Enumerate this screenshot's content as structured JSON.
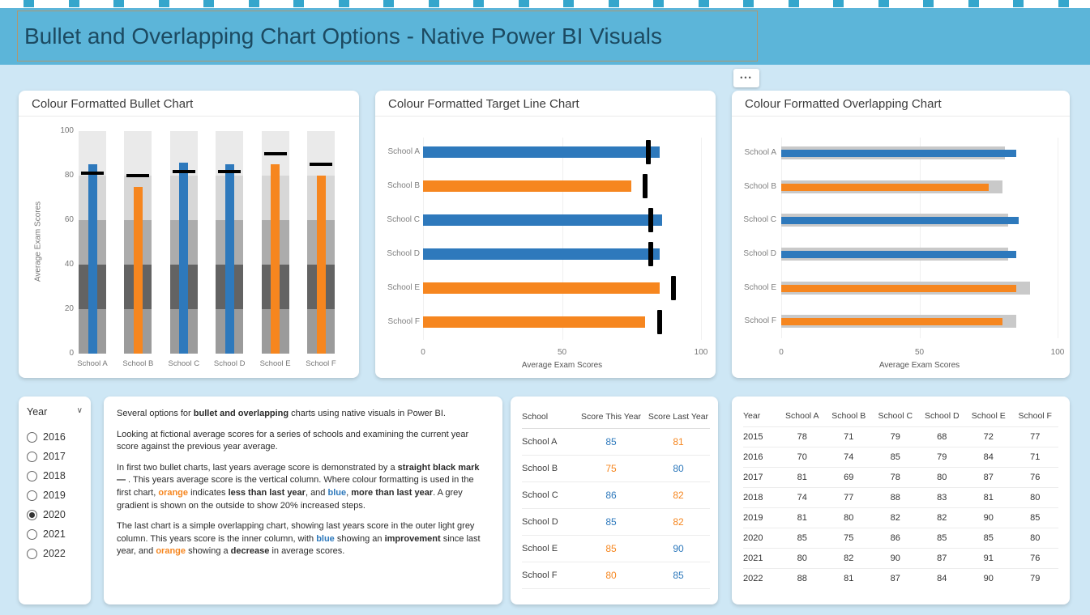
{
  "page": {
    "title": "Bullet and Overlapping Chart Options - Native Power BI Visuals"
  },
  "icons": {
    "more_options": "•••",
    "chevron_down": "∨"
  },
  "decor": {
    "square_count": 24
  },
  "colors": {
    "blue": "#2E79BC",
    "orange": "#F6861F",
    "header_band": "#5CB5D9",
    "decor_square": "#35A6CC",
    "page_background": "#CEE7F5",
    "grey_bar": "#C9C9C9",
    "target_mark": "#000000",
    "axis_text": "#777777",
    "category_text": "#808080"
  },
  "chart_data": [
    {
      "type": "bullet-column",
      "title": "Colour Formatted Bullet Chart",
      "categories": [
        "School A",
        "School B",
        "School C",
        "School D",
        "School E",
        "School F"
      ],
      "series": [
        {
          "name": "Score This Year",
          "values": [
            85,
            75,
            86,
            85,
            85,
            80
          ]
        },
        {
          "name": "Score Last Year (target mark)",
          "values": [
            81,
            80,
            82,
            82,
            90,
            85
          ]
        }
      ],
      "bar_colors": [
        "blue",
        "orange",
        "blue",
        "blue",
        "orange",
        "orange"
      ],
      "ylabel": "Average Exam Scores",
      "ylim": [
        0,
        100
      ],
      "yticks": [
        0,
        20,
        40,
        60,
        80,
        100
      ],
      "band_step": 20,
      "band_colors_bottom_to_top": [
        "#9b9b9b",
        "#636363",
        "#acacac",
        "#d7d7d7",
        "#eaeaea"
      ]
    },
    {
      "type": "bar-horizontal-target",
      "title": "Colour Formatted Target Line Chart",
      "categories": [
        "School A",
        "School B",
        "School C",
        "School D",
        "School E",
        "School F"
      ],
      "series": [
        {
          "name": "Score This Year",
          "values": [
            85,
            75,
            86,
            85,
            85,
            80
          ]
        },
        {
          "name": "Score Last Year (target mark)",
          "values": [
            81,
            80,
            82,
            82,
            90,
            85
          ]
        }
      ],
      "bar_colors": [
        "blue",
        "orange",
        "blue",
        "blue",
        "orange",
        "orange"
      ],
      "xlabel": "Average Exam Scores",
      "xlim": [
        0,
        100
      ],
      "xticks": [
        0,
        50,
        100
      ]
    },
    {
      "type": "bar-horizontal-overlap",
      "title": "Colour Formatted Overlapping Chart",
      "categories": [
        "School A",
        "School B",
        "School C",
        "School D",
        "School E",
        "School F"
      ],
      "series": [
        {
          "name": "Score This Year (inner column)",
          "values": [
            85,
            75,
            86,
            85,
            85,
            80
          ]
        },
        {
          "name": "Score Last Year (outer grey column)",
          "values": [
            81,
            80,
            82,
            82,
            90,
            85
          ]
        }
      ],
      "bar_colors": [
        "blue",
        "orange",
        "blue",
        "blue",
        "orange",
        "orange"
      ],
      "xlabel": "Average Exam Scores",
      "xlim": [
        0,
        100
      ],
      "xticks": [
        0,
        50,
        100
      ]
    }
  ],
  "slicer": {
    "label": "Year",
    "options": [
      "2016",
      "2017",
      "2018",
      "2019",
      "2020",
      "2021",
      "2022"
    ],
    "selected": "2020"
  },
  "description": {
    "paragraphs": [
      [
        {
          "t": "Several options for "
        },
        {
          "t": "bullet and overlapping",
          "b": true
        },
        {
          "t": " charts using native visuals in Power BI."
        }
      ],
      [
        {
          "t": "Looking at fictional average scores for a series of schools and examining the current year score against the previous year average."
        }
      ],
      [
        {
          "t": "In first two bullet charts, last years average score is demonstrated by a "
        },
        {
          "t": "straight black mark —",
          "b": true
        },
        {
          "t": " . This years average score is the vertical column. Where colour formatting is used in the first chart, "
        },
        {
          "t": "orange",
          "b": true,
          "c": "orange"
        },
        {
          "t": " indicates "
        },
        {
          "t": "less than last year",
          "b": true
        },
        {
          "t": ", and "
        },
        {
          "t": "blue",
          "b": true,
          "c": "blue"
        },
        {
          "t": ", "
        },
        {
          "t": "more than last year",
          "b": true
        },
        {
          "t": ". A grey gradient is shown on the outside to show 20% increased steps."
        }
      ],
      [
        {
          "t": "The last chart is a simple overlapping chart, showing last years score in the outer light grey column. This years score is the inner column, with "
        },
        {
          "t": "blue",
          "b": true,
          "c": "blue"
        },
        {
          "t": " showing an "
        },
        {
          "t": "improvement",
          "b": true
        },
        {
          "t": " since last year, and "
        },
        {
          "t": "orange",
          "b": true,
          "c": "orange"
        },
        {
          "t": " showing a "
        },
        {
          "t": "decrease",
          "b": true
        },
        {
          "t": " in average scores."
        }
      ]
    ]
  },
  "score_table": {
    "columns": [
      "School",
      "Score This Year",
      "Score Last Year"
    ],
    "rows": [
      {
        "school": "School A",
        "this_year": 85,
        "last_year": 81,
        "this_color": "blue",
        "last_color": "orange"
      },
      {
        "school": "School B",
        "this_year": 75,
        "last_year": 80,
        "this_color": "orange",
        "last_color": "blue"
      },
      {
        "school": "School C",
        "this_year": 86,
        "last_year": 82,
        "this_color": "blue",
        "last_color": "orange"
      },
      {
        "school": "School D",
        "this_year": 85,
        "last_year": 82,
        "this_color": "blue",
        "last_color": "orange"
      },
      {
        "school": "School E",
        "this_year": 85,
        "last_year": 90,
        "this_color": "orange",
        "last_color": "blue"
      },
      {
        "school": "School F",
        "this_year": 80,
        "last_year": 85,
        "this_color": "orange",
        "last_color": "blue"
      }
    ]
  },
  "year_table": {
    "columns": [
      "Year",
      "School A",
      "School B",
      "School C",
      "School D",
      "School E",
      "School F"
    ],
    "rows": [
      [
        2015,
        78,
        71,
        79,
        68,
        72,
        77
      ],
      [
        2016,
        70,
        74,
        85,
        79,
        84,
        71
      ],
      [
        2017,
        81,
        69,
        78,
        80,
        87,
        76
      ],
      [
        2018,
        74,
        77,
        88,
        83,
        81,
        80
      ],
      [
        2019,
        81,
        80,
        82,
        82,
        90,
        85
      ],
      [
        2020,
        85,
        75,
        86,
        85,
        85,
        80
      ],
      [
        2021,
        80,
        82,
        90,
        87,
        91,
        76
      ],
      [
        2022,
        88,
        81,
        87,
        84,
        90,
        79
      ]
    ]
  }
}
